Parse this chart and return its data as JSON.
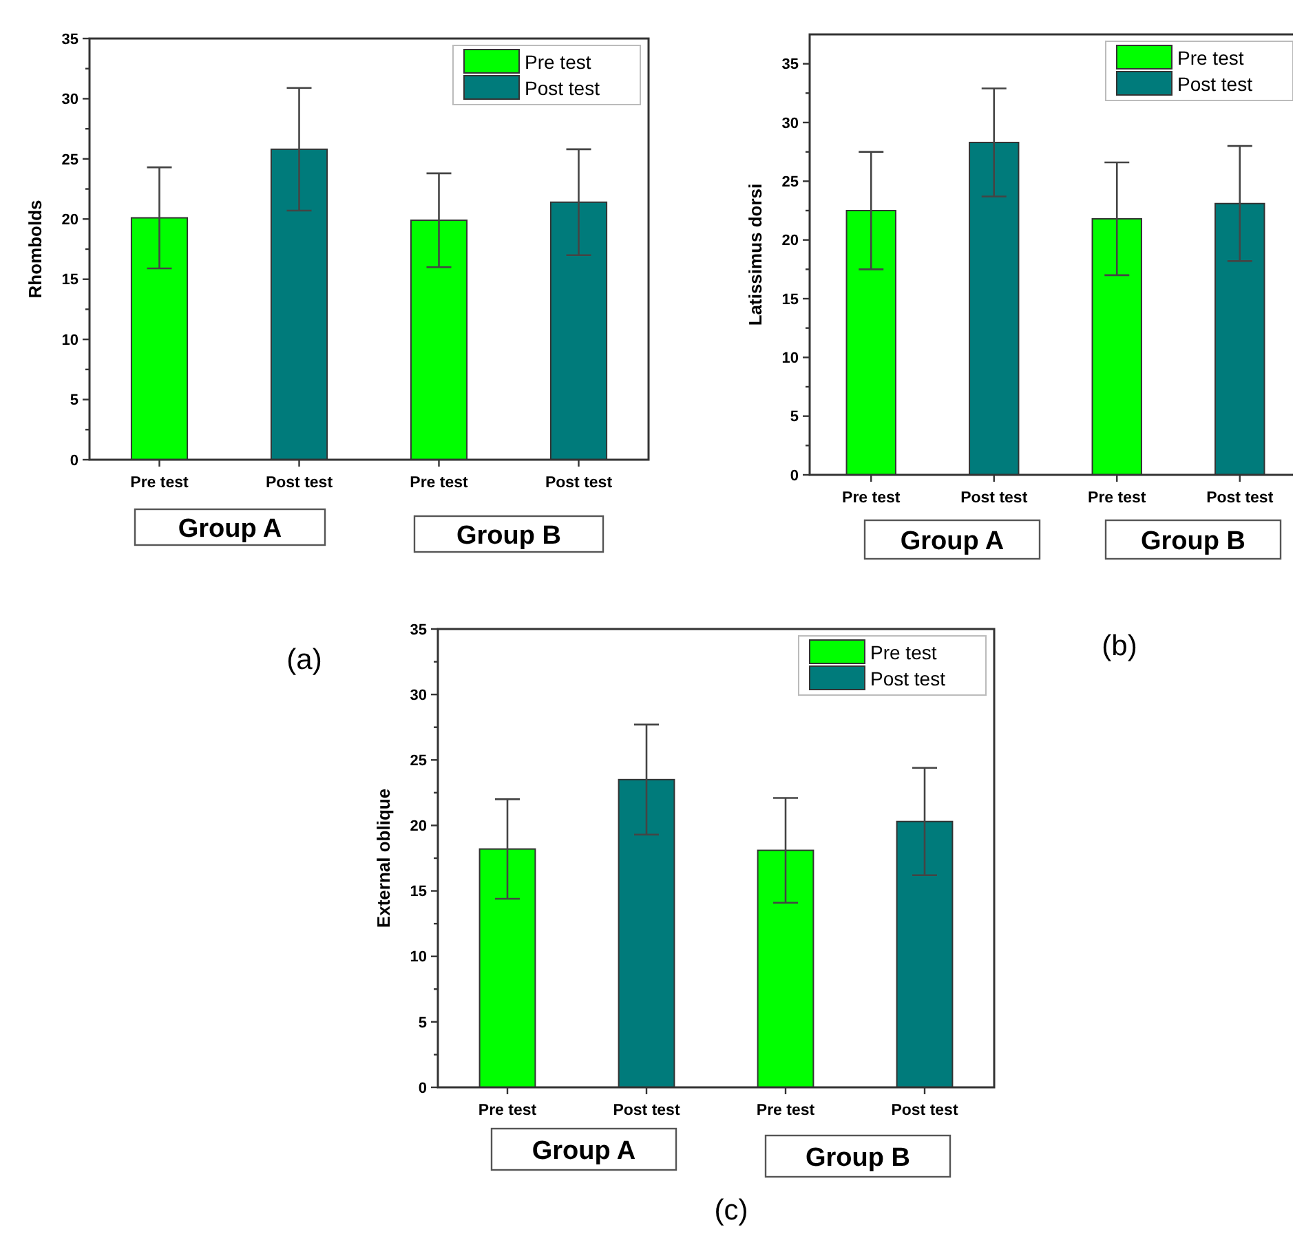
{
  "chart_data": [
    {
      "type": "bar",
      "ylabel": "Rhombolds",
      "categories": [
        "Pre test",
        "Post test",
        "Pre test",
        "Post test"
      ],
      "ylim": [
        0,
        35
      ],
      "yticks": [
        0,
        {
          "value": 2.5,
          "label": null
        },
        5,
        {
          "value": 7.5,
          "label": null
        },
        10,
        {
          "value": 12.5,
          "label": null
        },
        15,
        {
          "value": 17.5,
          "label": null
        },
        20,
        {
          "value": 22.5,
          "label": null
        },
        25,
        {
          "value": 27.5,
          "label": null
        },
        30,
        {
          "value": 32.5,
          "label": null
        },
        35
      ],
      "legend": "top right",
      "grid": false,
      "series": [
        {
          "name": "Pre test",
          "color": "#00ff00",
          "values": [
            20.1,
            null,
            19.9,
            null
          ],
          "errors": [
            4.2,
            null,
            3.9,
            null
          ]
        },
        {
          "name": "Post test",
          "color": "#007b7b",
          "values": [
            null,
            25.8,
            null,
            21.4
          ],
          "errors": [
            null,
            5.1,
            null,
            4.4
          ]
        }
      ],
      "annotations": [
        "Group A",
        "Group B",
        "(a)"
      ]
    },
    {
      "type": "bar",
      "ylabel": "Latissimus dorsi",
      "categories": [
        "Pre test",
        "Post test",
        "Pre test",
        "Post test"
      ],
      "ylim": [
        0,
        37.5
      ],
      "yticks": [
        0,
        {
          "value": 2.5,
          "label": null
        },
        5,
        {
          "value": 7.5,
          "label": null
        },
        10,
        {
          "value": 12.5,
          "label": null
        },
        15,
        {
          "value": 17.5,
          "label": null
        },
        20,
        {
          "value": 22.5,
          "label": null
        },
        25,
        {
          "value": 27.5,
          "label": null
        },
        30,
        {
          "value": 32.5,
          "label": null
        },
        35
      ],
      "legend": "top right",
      "grid": false,
      "series": [
        {
          "name": "Pre test",
          "color": "#00ff00",
          "values": [
            22.5,
            null,
            21.8,
            null
          ],
          "errors": [
            5.0,
            null,
            4.8,
            null
          ]
        },
        {
          "name": "Post test",
          "color": "#007b7b",
          "values": [
            null,
            28.3,
            null,
            23.1
          ],
          "errors": [
            null,
            4.6,
            null,
            4.9
          ]
        }
      ],
      "annotations": [
        "Group A",
        "Group B",
        "(b)"
      ]
    },
    {
      "type": "bar",
      "ylabel": "External oblique",
      "categories": [
        "Pre test",
        "Post test",
        "Pre test",
        "Post test"
      ],
      "ylim": [
        0,
        35
      ],
      "yticks": [
        0,
        {
          "value": 2.5,
          "label": null
        },
        5,
        {
          "value": 7.5,
          "label": null
        },
        10,
        {
          "value": 12.5,
          "label": null
        },
        15,
        {
          "value": 17.5,
          "label": null
        },
        20,
        {
          "value": 22.5,
          "label": null
        },
        25,
        {
          "value": 27.5,
          "label": null
        },
        30,
        {
          "value": 32.5,
          "label": null
        },
        35
      ],
      "legend": "top right",
      "grid": false,
      "series": [
        {
          "name": "Pre test",
          "color": "#00ff00",
          "values": [
            18.2,
            null,
            18.1,
            null
          ],
          "errors": [
            3.8,
            null,
            4.0,
            null
          ]
        },
        {
          "name": "Post test",
          "color": "#007b7b",
          "values": [
            null,
            23.5,
            null,
            20.3
          ],
          "errors": [
            null,
            4.2,
            null,
            4.1
          ]
        }
      ],
      "annotations": [
        "Group A",
        "Group B",
        "(c)"
      ]
    }
  ]
}
